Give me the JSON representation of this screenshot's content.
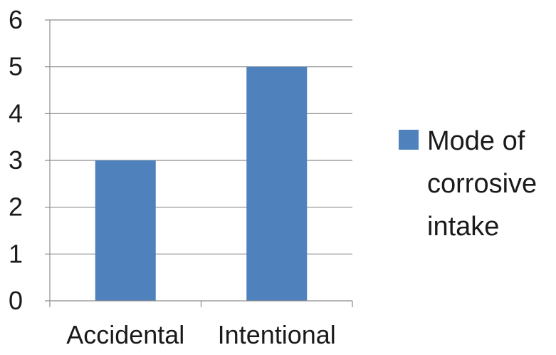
{
  "chart_data": {
    "type": "bar",
    "categories": [
      "Accidental",
      "Intentional"
    ],
    "series": [
      {
        "name": "Mode of corrosive intake",
        "values": [
          3,
          5
        ],
        "color": "#4f81bd"
      }
    ],
    "title": "",
    "xlabel": "",
    "ylabel": "",
    "ylim": [
      0,
      6
    ],
    "yticks": [
      "0",
      "1",
      "2",
      "3",
      "4",
      "5",
      "6"
    ],
    "grid": true,
    "legend_position": "right",
    "legend_lines": [
      "Mode of",
      "corrosive",
      "intake"
    ]
  }
}
